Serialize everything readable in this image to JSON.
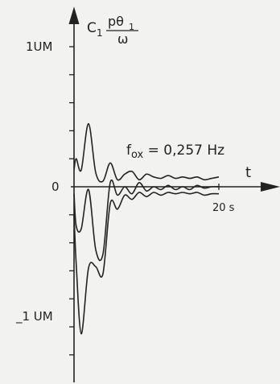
{
  "chart_data": {
    "type": "line",
    "y_axis_label_prefix": "C",
    "y_axis_label_prefix_sub": "1",
    "y_axis_label_num": "pθ",
    "y_axis_label_num_sub": "1",
    "y_axis_label_den": "ω",
    "x_axis_label": "t",
    "annotation_main": "f",
    "annotation_sub": "ox",
    "annotation_rest": " = 0,257 Hz",
    "x_tick_label": "20 s",
    "y_tick_labels": {
      "top": "1UM",
      "zero": "0",
      "bottom": "_1 UM"
    },
    "ylim": [
      -1.3,
      1.15
    ],
    "xlim": [
      -1.2,
      27
    ],
    "y_ticks": [
      1.0,
      0.8,
      0.6,
      0.4,
      0.2,
      0,
      -0.2,
      -0.4,
      -0.6,
      -0.8,
      -1.0,
      -1.2
    ],
    "x_tick": 20,
    "series": [
      {
        "x": [
          0,
          0.3,
          1,
          2,
          3,
          4,
          5,
          6,
          7,
          8,
          9,
          10,
          11,
          12,
          13,
          14,
          15,
          16,
          17,
          18,
          19,
          20
        ],
        "y": [
          0.12,
          0.2,
          0.12,
          0.45,
          0.1,
          0.04,
          0.17,
          0.05,
          0.09,
          0.11,
          0.05,
          0.09,
          0.07,
          0.06,
          0.08,
          0.06,
          0.07,
          0.06,
          0.07,
          0.05,
          0.06,
          0.07
        ]
      },
      {
        "x": [
          0,
          0.3,
          1,
          2,
          3,
          4,
          5,
          6,
          7,
          8,
          9,
          10,
          11,
          12,
          13,
          14,
          15,
          16,
          17,
          18,
          19,
          20
        ],
        "y": [
          -0.05,
          -0.28,
          -0.3,
          -0.02,
          -0.45,
          -0.48,
          0.03,
          -0.06,
          0.0,
          -0.05,
          0.03,
          -0.03,
          0.0,
          -0.02,
          0.01,
          -0.02,
          0.0,
          -0.02,
          0.01,
          -0.01,
          0.0,
          0.0
        ]
      },
      {
        "x": [
          0,
          0.3,
          1,
          2,
          3,
          4,
          5,
          6,
          7,
          8,
          9,
          10,
          11,
          12,
          13,
          14,
          15,
          16,
          17,
          18,
          19,
          20
        ],
        "y": [
          -0.2,
          -0.55,
          -1.05,
          -0.58,
          -0.57,
          -0.62,
          -0.12,
          -0.16,
          -0.06,
          -0.09,
          -0.04,
          -0.07,
          -0.04,
          -0.06,
          -0.04,
          -0.05,
          -0.04,
          -0.05,
          -0.04,
          -0.06,
          -0.05,
          -0.05
        ]
      }
    ]
  }
}
